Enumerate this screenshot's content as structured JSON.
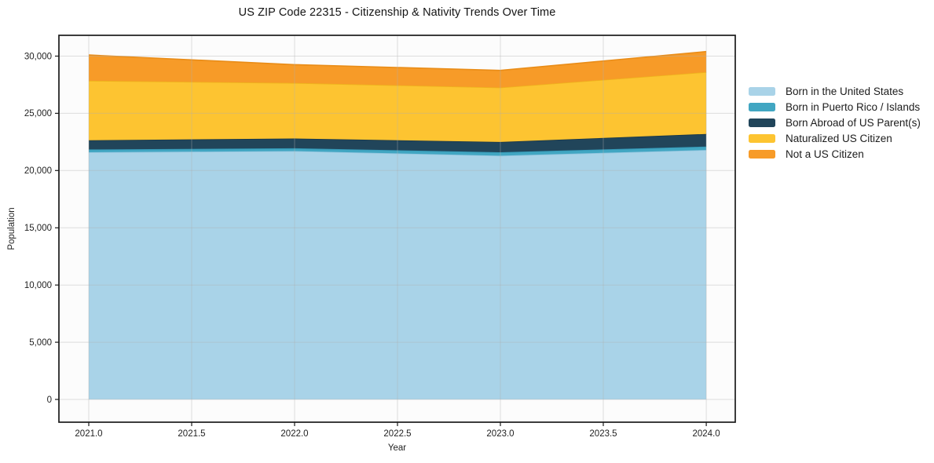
{
  "figure": {
    "background": "#ffffff",
    "plot_background": "#fcfcfc",
    "spine_color": "#1a1a1a",
    "grid_color_rgba": "rgba(175,175,175,0.4)",
    "text_color": "#1f1f1f"
  },
  "chart_data": {
    "type": "area",
    "stacked": true,
    "title": "US ZIP Code 22315 - Citizenship & Nativity Trends Over Time",
    "xlabel": "Year",
    "ylabel": "Population",
    "x": [
      2021,
      2022,
      2023,
      2024
    ],
    "xlim": [
      2020.855,
      2024.141
    ],
    "ylim": [
      -1989,
      31818
    ],
    "x_ticks": [
      2021.0,
      2021.5,
      2022.0,
      2022.5,
      2023.0,
      2023.5,
      2024.0
    ],
    "x_tick_labels": [
      "2021.0",
      "2021.5",
      "2022.0",
      "2022.5",
      "2023.0",
      "2023.5",
      "2024.0"
    ],
    "y_ticks": [
      0,
      5000,
      10000,
      15000,
      20000,
      25000,
      30000
    ],
    "y_tick_labels": [
      "0",
      "5,000",
      "10,000",
      "15,000",
      "20,000",
      "25,000",
      "30,000"
    ],
    "grid": true,
    "legend_position": "center-right-outside",
    "legend_frame": false,
    "series": [
      {
        "name": "Born in the United States",
        "fill": "#a9d3e8",
        "edge": "#90c4de",
        "values": [
          21600,
          21700,
          21300,
          21800
        ]
      },
      {
        "name": "Born in Puerto Rico / Islands",
        "fill": "#41a6c2",
        "edge": "#3295b3",
        "values": [
          250,
          250,
          300,
          300
        ]
      },
      {
        "name": "Born Abroad of US Parent(s)",
        "fill": "#21455a",
        "edge": "#193747",
        "values": [
          800,
          850,
          900,
          1100
        ]
      },
      {
        "name": "Naturalized US Citizen",
        "fill": "#fdc431",
        "edge": "#eeb41c",
        "values": [
          5200,
          4850,
          4750,
          5400
        ]
      },
      {
        "name": "Not a US Citizen",
        "fill": "#f79b28",
        "edge": "#e98c17",
        "values": [
          2250,
          1600,
          1500,
          1800
        ]
      }
    ],
    "stacked_totals": [
      30100,
      29250,
      28750,
      30400
    ]
  }
}
